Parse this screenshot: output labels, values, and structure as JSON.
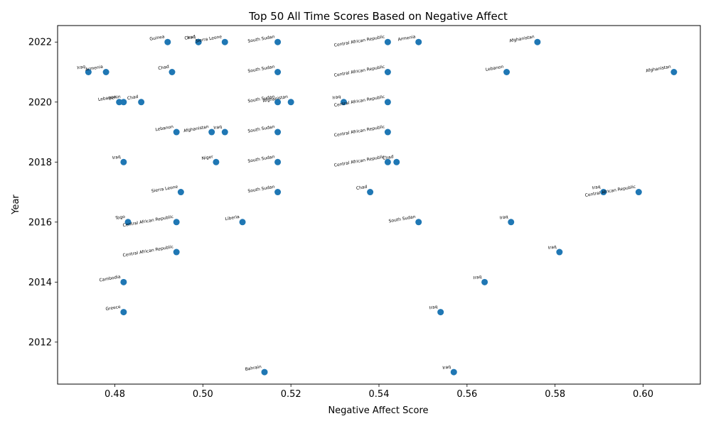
{
  "chart_data": {
    "type": "scatter",
    "title": "Top 50 All Time Scores Based on Negative Affect",
    "xlabel": "Negative Affect Score",
    "ylabel": "Year",
    "xlim": [
      0.467,
      0.613
    ],
    "ylim": [
      2010.6,
      2022.55
    ],
    "x_ticks": [
      "0.48",
      "0.50",
      "0.52",
      "0.54",
      "0.56",
      "0.58",
      "0.60"
    ],
    "y_ticks": [
      "2012",
      "2014",
      "2016",
      "2018",
      "2020",
      "2022"
    ],
    "grid": false,
    "marker_color": "#1f77b4",
    "points": [
      {
        "label": "Guinea",
        "x": 0.492,
        "y": 2022
      },
      {
        "label": "Chad",
        "x": 0.499,
        "y": 2022
      },
      {
        "label": "Iraq",
        "x": 0.499,
        "y": 2022
      },
      {
        "label": "Sierra Leone",
        "x": 0.505,
        "y": 2022
      },
      {
        "label": "South Sudan",
        "x": 0.517,
        "y": 2022
      },
      {
        "label": "Central African Republic",
        "x": 0.542,
        "y": 2022
      },
      {
        "label": "Armenia",
        "x": 0.549,
        "y": 2022
      },
      {
        "label": "Afghanistan",
        "x": 0.576,
        "y": 2022
      },
      {
        "label": "Iraq",
        "x": 0.474,
        "y": 2021
      },
      {
        "label": "Armenia",
        "x": 0.478,
        "y": 2021
      },
      {
        "label": "Chad",
        "x": 0.493,
        "y": 2021
      },
      {
        "label": "South Sudan",
        "x": 0.517,
        "y": 2021
      },
      {
        "label": "Central African Republic",
        "x": 0.542,
        "y": 2021
      },
      {
        "label": "Lebanon",
        "x": 0.569,
        "y": 2021
      },
      {
        "label": "Afghanistan",
        "x": 0.607,
        "y": 2021
      },
      {
        "label": "Lebanon",
        "x": 0.481,
        "y": 2020
      },
      {
        "label": "Benin",
        "x": 0.482,
        "y": 2020
      },
      {
        "label": "Chad",
        "x": 0.486,
        "y": 2020
      },
      {
        "label": "South Sudan",
        "x": 0.517,
        "y": 2020
      },
      {
        "label": "Afghanistan",
        "x": 0.52,
        "y": 2020
      },
      {
        "label": "Iraq",
        "x": 0.532,
        "y": 2020
      },
      {
        "label": "Central African Republic",
        "x": 0.542,
        "y": 2020
      },
      {
        "label": "Lebanon",
        "x": 0.494,
        "y": 2019
      },
      {
        "label": "Afghanistan",
        "x": 0.502,
        "y": 2019
      },
      {
        "label": "Iraq",
        "x": 0.505,
        "y": 2019
      },
      {
        "label": "South Sudan",
        "x": 0.517,
        "y": 2019
      },
      {
        "label": "Central African Republic",
        "x": 0.542,
        "y": 2019
      },
      {
        "label": "Iraq",
        "x": 0.482,
        "y": 2018
      },
      {
        "label": "Niger",
        "x": 0.503,
        "y": 2018
      },
      {
        "label": "South Sudan",
        "x": 0.517,
        "y": 2018
      },
      {
        "label": "Central African Republic",
        "x": 0.542,
        "y": 2018
      },
      {
        "label": "Chad",
        "x": 0.544,
        "y": 2018
      },
      {
        "label": "Sierra Leone",
        "x": 0.495,
        "y": 2017
      },
      {
        "label": "South Sudan",
        "x": 0.517,
        "y": 2017
      },
      {
        "label": "Chad",
        "x": 0.538,
        "y": 2017
      },
      {
        "label": "Iraq",
        "x": 0.591,
        "y": 2017
      },
      {
        "label": "Central African Republic",
        "x": 0.599,
        "y": 2017
      },
      {
        "label": "Togo",
        "x": 0.483,
        "y": 2016
      },
      {
        "label": "Central African Republic",
        "x": 0.494,
        "y": 2016
      },
      {
        "label": "Liberia",
        "x": 0.509,
        "y": 2016
      },
      {
        "label": "South Sudan",
        "x": 0.549,
        "y": 2016
      },
      {
        "label": "Iraq",
        "x": 0.57,
        "y": 2016
      },
      {
        "label": "Central African Republic",
        "x": 0.494,
        "y": 2015
      },
      {
        "label": "Iraq",
        "x": 0.581,
        "y": 2015
      },
      {
        "label": "Cambodia",
        "x": 0.482,
        "y": 2014
      },
      {
        "label": "Iraq",
        "x": 0.564,
        "y": 2014
      },
      {
        "label": "Greece",
        "x": 0.482,
        "y": 2013
      },
      {
        "label": "Iraq",
        "x": 0.554,
        "y": 2013
      },
      {
        "label": "Bahrain",
        "x": 0.514,
        "y": 2011
      },
      {
        "label": "Iraq",
        "x": 0.557,
        "y": 2011
      }
    ]
  }
}
